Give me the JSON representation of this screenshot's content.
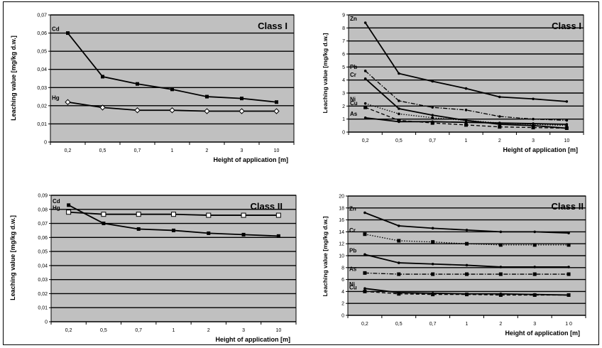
{
  "chart_data": [
    {
      "type": "line",
      "title": "Class I",
      "xlabel": "Height of application [m]",
      "ylabel": "Leaching value [mg/kg d.w.]",
      "categories": [
        "0,2",
        "0,5",
        "0,7",
        "1",
        "2",
        "3",
        "10"
      ],
      "y_ticks": [
        "0",
        "0,01",
        "0,02",
        "0,03",
        "0,04",
        "0,05",
        "0,06",
        "0,07"
      ],
      "ylim": [
        0,
        0.07
      ],
      "grid": true,
      "plot_background": "#c0c0c0",
      "series": [
        {
          "name": "Cd",
          "values": [
            0.06,
            0.036,
            0.032,
            0.029,
            0.025,
            0.024,
            0.022
          ],
          "marker": "square",
          "dash": "solid"
        },
        {
          "name": "Hg",
          "values": [
            0.022,
            0.019,
            0.0175,
            0.0175,
            0.017,
            0.017,
            0.017
          ],
          "marker": "diamond-open",
          "dash": "solid"
        }
      ]
    },
    {
      "type": "line",
      "title": "Class I",
      "xlabel": "Height of application [m]",
      "ylabel": "Leaching value [mg/kg d.w.]",
      "categories": [
        "0,2",
        "0,5",
        "0,7",
        "1",
        "2",
        "3",
        "10"
      ],
      "y_ticks": [
        "0",
        "1",
        "2",
        "3",
        "4",
        "5",
        "6",
        "7",
        "8",
        "9"
      ],
      "ylim": [
        0,
        9
      ],
      "grid": true,
      "plot_background": "#c0c0c0",
      "series": [
        {
          "name": "Zn",
          "values": [
            8.4,
            4.5,
            3.9,
            3.35,
            2.7,
            2.55,
            2.35
          ],
          "marker": "dot",
          "dash": "solid"
        },
        {
          "name": "Pb",
          "values": [
            4.7,
            2.4,
            1.9,
            1.7,
            1.2,
            1.0,
            0.9
          ],
          "marker": "dot",
          "dash": "dashdot"
        },
        {
          "name": "Cr",
          "values": [
            4.1,
            1.8,
            1.3,
            0.9,
            0.6,
            0.5,
            0.3
          ],
          "marker": "dot",
          "dash": "solid"
        },
        {
          "name": "Ni",
          "values": [
            2.2,
            1.4,
            1.1,
            0.9,
            0.7,
            0.6,
            0.5
          ],
          "marker": "dot",
          "dash": "dotted"
        },
        {
          "name": "Cu",
          "values": [
            1.9,
            0.9,
            0.7,
            0.55,
            0.4,
            0.35,
            0.3
          ],
          "marker": "square",
          "dash": "dashed"
        },
        {
          "name": "As",
          "values": [
            1.1,
            0.8,
            0.8,
            0.75,
            0.7,
            0.65,
            0.6
          ],
          "marker": "dot",
          "dash": "solid"
        }
      ]
    },
    {
      "type": "line",
      "title": "Class II",
      "xlabel": "Height of application [m]",
      "ylabel": "Leaching value [mg/kg d.w.]",
      "categories": [
        "0,2",
        "0,5",
        "0,7",
        "1",
        "2",
        "3",
        "10"
      ],
      "y_ticks": [
        "0",
        "0,01",
        "0,02",
        "0,03",
        "0,04",
        "0,05",
        "0,06",
        "0,07",
        "0,08",
        "0,09"
      ],
      "ylim": [
        0,
        0.09
      ],
      "grid": true,
      "plot_background": "#c0c0c0",
      "series": [
        {
          "name": "Cd",
          "values": [
            0.083,
            0.07,
            0.066,
            0.065,
            0.063,
            0.062,
            0.061
          ],
          "marker": "square",
          "dash": "solid"
        },
        {
          "name": "Hg",
          "values": [
            0.078,
            0.0765,
            0.0765,
            0.0765,
            0.0758,
            0.0758,
            0.0758
          ],
          "marker": "square-open",
          "dash": "solid"
        }
      ]
    },
    {
      "type": "line",
      "title": "Class II",
      "xlabel": "Height of application [m]",
      "ylabel": "Leaching value [mg/kg d.w.]",
      "categories": [
        "0,2",
        "0,5",
        "0,7",
        "1",
        "2",
        "3",
        "1 0"
      ],
      "y_ticks": [
        "0",
        "2",
        "4",
        "6",
        "8",
        "10",
        "12",
        "14",
        "16",
        "18",
        "20"
      ],
      "ylim": [
        0,
        20
      ],
      "grid": true,
      "plot_background": "#c0c0c0",
      "series": [
        {
          "name": "Zn",
          "values": [
            17.2,
            15.0,
            14.6,
            14.3,
            14.0,
            14.0,
            13.8
          ],
          "marker": "dot",
          "dash": "solid"
        },
        {
          "name": "Cr",
          "values": [
            13.6,
            12.5,
            12.3,
            12.0,
            11.8,
            11.8,
            11.8
          ],
          "marker": "square",
          "dash": "dotted"
        },
        {
          "name": "Pb",
          "values": [
            10.2,
            8.8,
            8.6,
            8.4,
            8.1,
            8.1,
            8.1
          ],
          "marker": "dot",
          "dash": "solid"
        },
        {
          "name": "As",
          "values": [
            7.1,
            6.9,
            6.9,
            6.9,
            6.9,
            6.9,
            6.9
          ],
          "marker": "square",
          "dash": "dashdot"
        },
        {
          "name": "Ni",
          "values": [
            4.5,
            3.8,
            3.7,
            3.6,
            3.6,
            3.5,
            3.4
          ],
          "marker": "dot",
          "dash": "solid"
        },
        {
          "name": "Cu",
          "values": [
            4.0,
            3.6,
            3.5,
            3.5,
            3.4,
            3.4,
            3.4
          ],
          "marker": "square",
          "dash": "dashed"
        }
      ]
    }
  ]
}
